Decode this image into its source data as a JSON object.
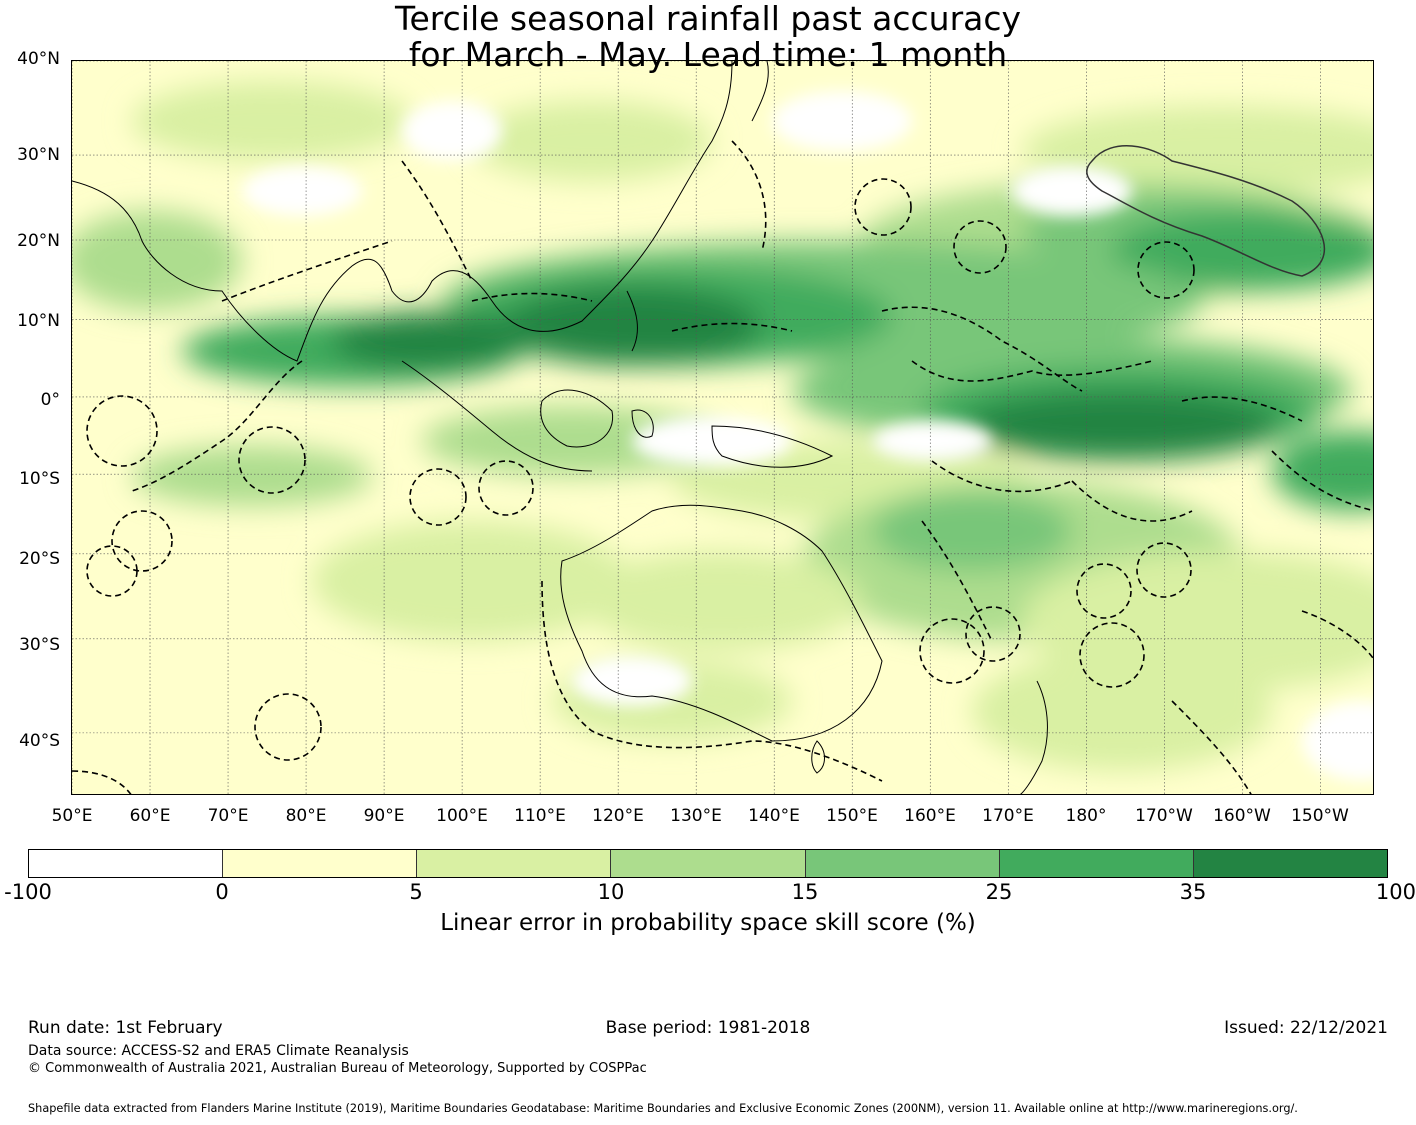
{
  "title": {
    "line1": "Tercile seasonal rainfall past accuracy",
    "line2": "for March - May. Lead time: 1 month"
  },
  "map": {
    "lat_labels": [
      "40°N",
      "30°N",
      "20°N",
      "10°N",
      "0°",
      "10°S",
      "20°S",
      "30°S",
      "40°S"
    ],
    "lon_labels": [
      "50°E",
      "60°E",
      "70°E",
      "80°E",
      "90°E",
      "100°E",
      "110°E",
      "120°E",
      "130°E",
      "140°E",
      "150°E",
      "160°E",
      "170°E",
      "180°",
      "170°W",
      "160°W",
      "150°W"
    ],
    "extent": {
      "lon_min": 50,
      "lon_max": 217,
      "lat_min": -46,
      "lat_max": 40
    }
  },
  "colorbar": {
    "ticks": [
      "-100",
      "0",
      "5",
      "10",
      "15",
      "25",
      "35",
      "100"
    ],
    "colors": [
      "#ffffff",
      "#ffffcc",
      "#d9f0a3",
      "#addd8e",
      "#78c679",
      "#41ab5d",
      "#238443"
    ],
    "label": "Linear error in probability space skill score (%)"
  },
  "footer": {
    "run_date": "Run date: 1st February",
    "base_period": "Base period: 1981-2018",
    "issued": "Issued: 22/12/2021",
    "data_source": "Data source: ACCESS-S2 and ERA5 Climate Reanalysis",
    "copyright": "© Commonwealth of Australia 2021, Australian Bureau of Meteorology, Supported by COSPPac",
    "shapefile": "Shapefile data extracted from Flanders Marine Institute (2019), Maritime Boundaries Geodatabase: Maritime Boundaries and Exclusive Economic Zones (200NM), version 11. Available online at http://www.marineregions.org/."
  }
}
